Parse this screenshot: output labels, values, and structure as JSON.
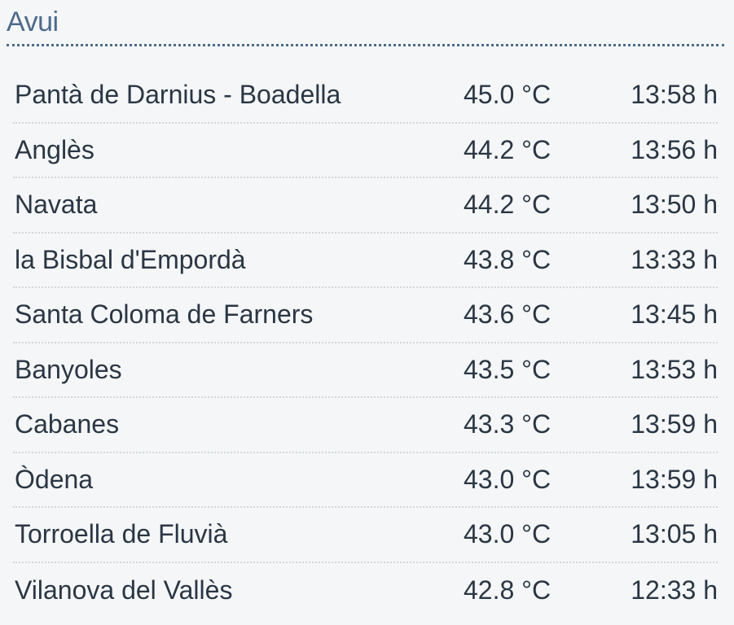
{
  "title": "Avui",
  "rows": [
    {
      "station": "Pantà de Darnius - Boadella",
      "temp": "45.0 °C",
      "time": "13:58 h"
    },
    {
      "station": "Anglès",
      "temp": "44.2 °C",
      "time": "13:56 h"
    },
    {
      "station": "Navata",
      "temp": "44.2 °C",
      "time": "13:50 h"
    },
    {
      "station": "la Bisbal d'Empordà",
      "temp": "43.8 °C",
      "time": "13:33 h"
    },
    {
      "station": "Santa Coloma de Farners",
      "temp": "43.6 °C",
      "time": "13:45 h"
    },
    {
      "station": "Banyoles",
      "temp": "43.5 °C",
      "time": "13:53 h"
    },
    {
      "station": "Cabanes",
      "temp": "43.3 °C",
      "time": "13:59 h"
    },
    {
      "station": "Òdena",
      "temp": "43.0 °C",
      "time": "13:59 h"
    },
    {
      "station": "Torroella de Fluvià",
      "temp": "43.0 °C",
      "time": "13:05 h"
    },
    {
      "station": "Vilanova del Vallès",
      "temp": "42.8 °C",
      "time": "12:33 h"
    }
  ]
}
